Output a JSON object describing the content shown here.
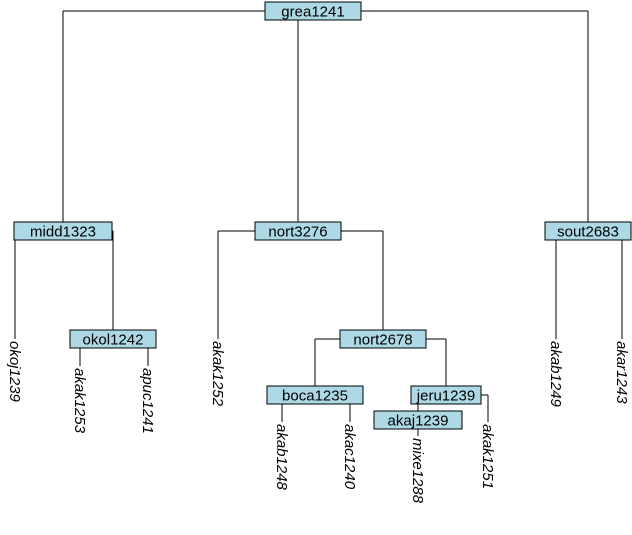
{
  "colors": {
    "node_fill": "#add8e6",
    "line": "#000000",
    "background": "#ffffff"
  },
  "tree": {
    "id": "grea1241",
    "children": [
      {
        "id": "midd1323",
        "children": [
          {
            "id": "okoj1239"
          },
          {
            "id": "okol1242",
            "children": [
              {
                "id": "akak1253"
              },
              {
                "id": "apuc1241"
              }
            ]
          }
        ]
      },
      {
        "id": "nort3276",
        "children": [
          {
            "id": "akak1252"
          },
          {
            "id": "nort2678",
            "children": [
              {
                "id": "boca1235",
                "children": [
                  {
                    "id": "akab1248"
                  },
                  {
                    "id": "akac1240"
                  }
                ]
              },
              {
                "id": "jeru1239",
                "children": [
                  {
                    "id": "akaj1239",
                    "children": [
                      {
                        "id": "mixe1288"
                      }
                    ]
                  },
                  {
                    "id": "akak1251"
                  }
                ]
              }
            ]
          }
        ]
      },
      {
        "id": "sout2683",
        "children": [
          {
            "id": "akab1249"
          },
          {
            "id": "akar1243"
          }
        ]
      }
    ]
  }
}
